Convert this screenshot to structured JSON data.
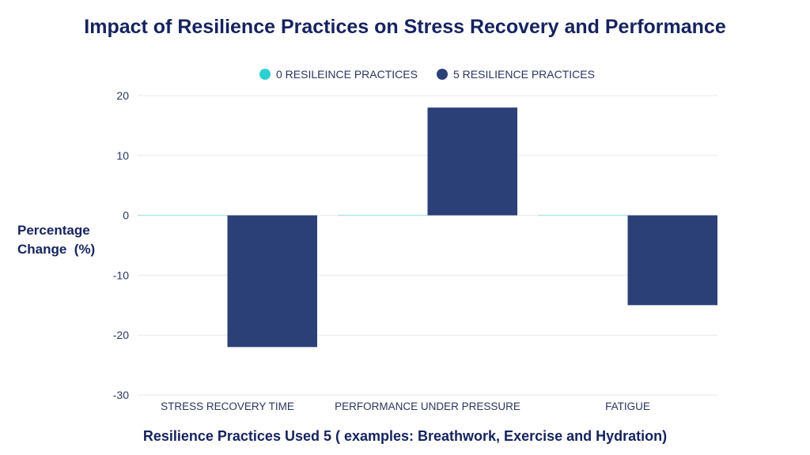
{
  "chart_data": {
    "type": "bar",
    "title": "Impact of Resilience Practices on Stress Recovery and Performance",
    "xlabel": "Resilience Practices Used 5 ( examples: Breathwork, Exercise and Hydration)",
    "ylabel": "Percentage\nChange  (%)",
    "categories": [
      "STRESS RECOVERY TIME",
      "PERFORMANCE UNDER PRESSURE",
      "FATIGUE"
    ],
    "series": [
      {
        "name": "0 RESILEINCE PRACTICES",
        "values": [
          0,
          0,
          0
        ],
        "color": "#2ecfcf"
      },
      {
        "name": "5 RESILIENCE PRACTICES",
        "values": [
          -22,
          18,
          -15
        ],
        "color": "#2c4078"
      }
    ],
    "ylim": [
      -30,
      20
    ],
    "yticks": [
      20,
      10,
      0,
      -10,
      -20,
      -30
    ],
    "grid": true,
    "legend": "top-center"
  }
}
